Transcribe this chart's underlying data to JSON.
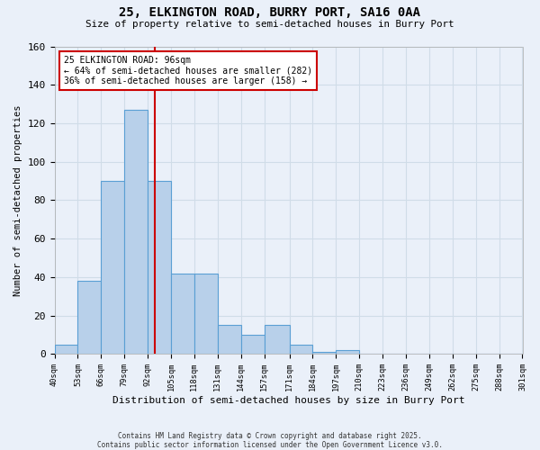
{
  "title_line1": "25, ELKINGTON ROAD, BURRY PORT, SA16 0AA",
  "title_line2": "Size of property relative to semi-detached houses in Burry Port",
  "xlabel": "Distribution of semi-detached houses by size in Burry Port",
  "ylabel": "Number of semi-detached properties",
  "bin_edges": [
    40,
    53,
    66,
    79,
    92,
    105,
    118,
    131,
    144,
    157,
    171,
    184,
    197,
    210,
    223,
    236,
    249,
    262,
    275,
    288,
    301
  ],
  "bar_heights": [
    5,
    38,
    90,
    127,
    90,
    42,
    42,
    15,
    10,
    15,
    5,
    1,
    2,
    0,
    0,
    0,
    0,
    0,
    0,
    0
  ],
  "bar_color": "#b8d0ea",
  "bar_edgecolor": "#5a9fd4",
  "red_line_x": 96,
  "annotation_title": "25 ELKINGTON ROAD: 96sqm",
  "annotation_line2": "← 64% of semi-detached houses are smaller (282)",
  "annotation_line3": "36% of semi-detached houses are larger (158) →",
  "annotation_box_color": "#ffffff",
  "annotation_border_color": "#cc0000",
  "red_line_color": "#cc0000",
  "ylim": [
    0,
    160
  ],
  "yticks": [
    0,
    20,
    40,
    60,
    80,
    100,
    120,
    140,
    160
  ],
  "footer_line1": "Contains HM Land Registry data © Crown copyright and database right 2025.",
  "footer_line2": "Contains public sector information licensed under the Open Government Licence v3.0.",
  "bg_color": "#eaf0f9",
  "grid_color": "#d0dce8"
}
